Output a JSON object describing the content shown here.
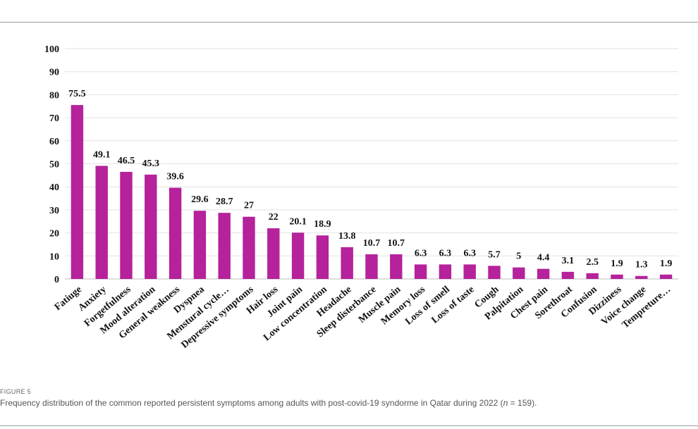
{
  "chart_data": {
    "type": "bar",
    "categories": [
      "Fatiuge",
      "Anxiety",
      "Forgetfulness",
      "Mood alteration",
      "General weakness",
      "Dyspnea",
      "Menstural cycle…",
      "Depressive symptoms",
      "Hair loss",
      "Joint pain",
      "Low concentration",
      "Headache",
      "Sleep disterbance",
      "Muscle pain",
      "Memory loss",
      "Loss of smell",
      "Loss of taste",
      "Cough",
      "Palpitation",
      "Chest pain",
      "Sorethroat",
      "Confusion",
      "Dizziness",
      "Voice change",
      "Tempreture…"
    ],
    "values": [
      75.5,
      49.1,
      46.5,
      45.3,
      39.6,
      29.6,
      28.7,
      27,
      22,
      20.1,
      18.9,
      13.8,
      10.7,
      10.7,
      6.3,
      6.3,
      6.3,
      5.7,
      5,
      4.4,
      3.1,
      2.5,
      1.9,
      1.3,
      1.9
    ],
    "data_labels": [
      "75.5",
      "49.1",
      "46.5",
      "45.3",
      "39.6",
      "29.6",
      "28.7",
      "27",
      "22",
      "20.1",
      "18.9",
      "13.8",
      "10.7",
      "10.7",
      "6.3",
      "6.3",
      "6.3",
      "5.7",
      "5",
      "4.4",
      "3.1",
      "2.5",
      "1.9",
      "1.3",
      "1.9"
    ],
    "ylim": [
      0,
      100
    ],
    "yticks": [
      0,
      10,
      20,
      30,
      40,
      50,
      60,
      70,
      80,
      90,
      100
    ],
    "grid": true,
    "bar_color": "#b5229b",
    "title": "",
    "xlabel": "",
    "ylabel": ""
  },
  "caption": {
    "label": "FIGURE 5",
    "text_before": "Frequency distribution of the common reported persistent symptoms among adults with post-covid-19 syndorme in Qatar during 2022 (",
    "n_symbol": "n",
    "text_after": " = 159)."
  }
}
